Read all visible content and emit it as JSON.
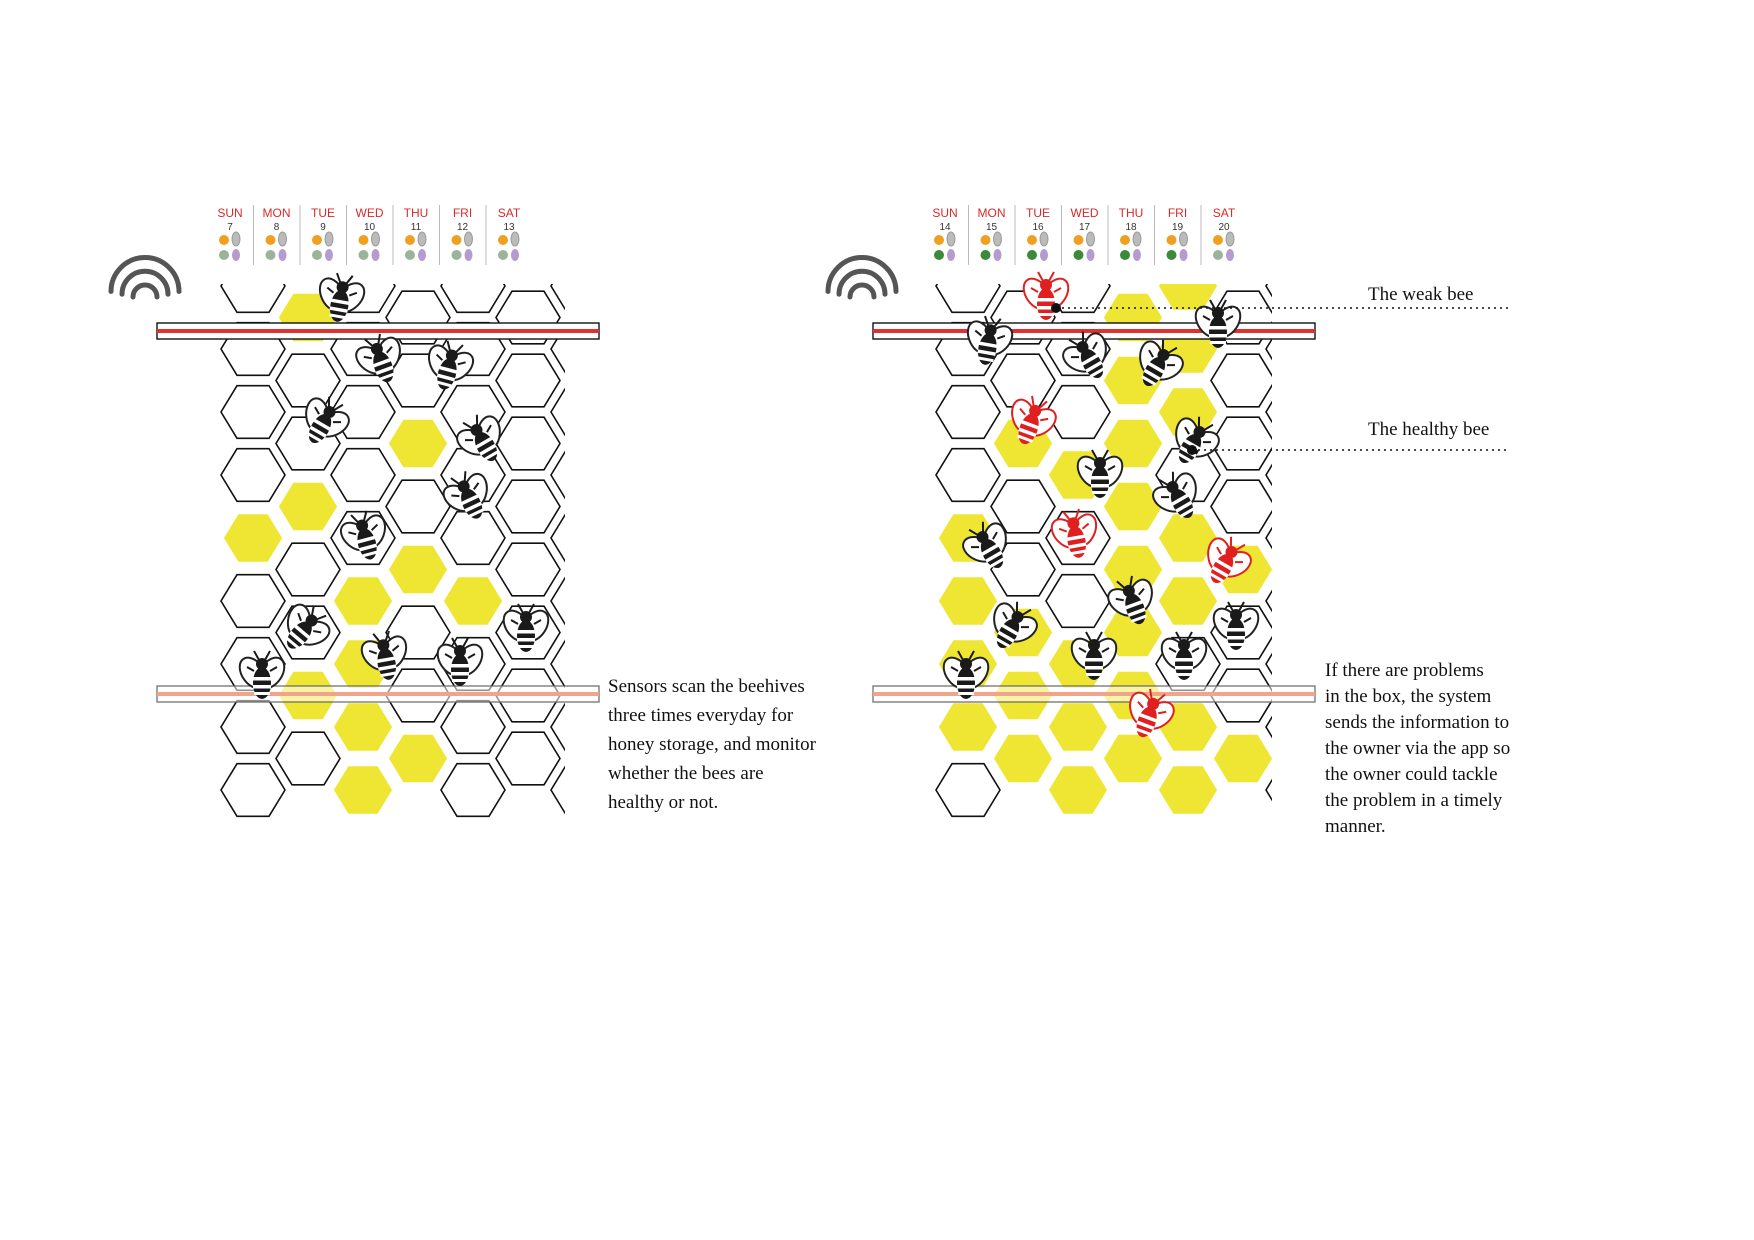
{
  "colors": {
    "honey": "#efe633",
    "cell_stroke": "#111111",
    "sensor_top": "#e03131",
    "sensor_bottom": "#f2a48a",
    "wifi": "#555555",
    "day_name": "#d62b2b",
    "weak_bee": "#e02020",
    "healthy_bee": "#1a1a1a"
  },
  "panels": [
    {
      "calendar": [
        {
          "day": "SUN",
          "date": "7",
          "icons": [
            "flower-icon",
            "wing-icon",
            "food-icon",
            "larva-icon"
          ]
        },
        {
          "day": "MON",
          "date": "8",
          "icons": [
            "flower-icon",
            "wing-icon",
            "food-icon",
            "larva-icon"
          ]
        },
        {
          "day": "TUE",
          "date": "9",
          "icons": [
            "flower-icon",
            "wing-icon",
            "food-icon",
            "larva-icon"
          ]
        },
        {
          "day": "WED",
          "date": "10",
          "icons": [
            "flower-icon",
            "wing-icon",
            "food-icon",
            "larva-icon"
          ]
        },
        {
          "day": "THU",
          "date": "11",
          "icons": [
            "flower-icon",
            "wing-icon",
            "food-icon",
            "larva-icon"
          ]
        },
        {
          "day": "FRI",
          "date": "12",
          "icons": [
            "flower-icon",
            "wing-icon",
            "food-icon",
            "larva-icon"
          ]
        },
        {
          "day": "SAT",
          "date": "13",
          "icons": [
            "flower-icon",
            "wing-icon",
            "food-icon",
            "larva-icon"
          ]
        }
      ],
      "description": [
        "Sensors scan the beehives",
        "three times everyday for",
        "honey storage, and monitor",
        "whether the bees are",
        "healthy or not."
      ]
    },
    {
      "calendar": [
        {
          "day": "SUN",
          "date": "14",
          "icons": [
            "flower-icon",
            "wing-icon",
            "food-icon",
            "larva-icon"
          ]
        },
        {
          "day": "MON",
          "date": "15",
          "icons": [
            "flower-icon",
            "wing-icon",
            "food-icon",
            "larva-icon"
          ]
        },
        {
          "day": "TUE",
          "date": "16",
          "icons": [
            "flower-icon",
            "wing-icon",
            "food-icon",
            "larva-icon"
          ]
        },
        {
          "day": "WED",
          "date": "17",
          "icons": [
            "flower-icon",
            "wing-icon",
            "food-icon",
            "larva-icon"
          ]
        },
        {
          "day": "THU",
          "date": "18",
          "icons": [
            "flower-icon",
            "wing-icon",
            "food-icon",
            "larva-icon"
          ]
        },
        {
          "day": "FRI",
          "date": "19",
          "icons": [
            "flower-icon",
            "wing-icon",
            "food-icon",
            "larva-icon"
          ]
        },
        {
          "day": "SAT",
          "date": "20",
          "icons": [
            "flower-icon",
            "wing-icon",
            "food-icon",
            "larva-icon"
          ]
        }
      ],
      "labels": {
        "weak": "The weak bee",
        "healthy": "The healthy bee"
      },
      "description": [
        "If there are  problems",
        "in the box, the system",
        "sends the information to",
        "the owner via the app so",
        "the owner could tackle",
        "the problem in a timely",
        "manner."
      ]
    }
  ]
}
